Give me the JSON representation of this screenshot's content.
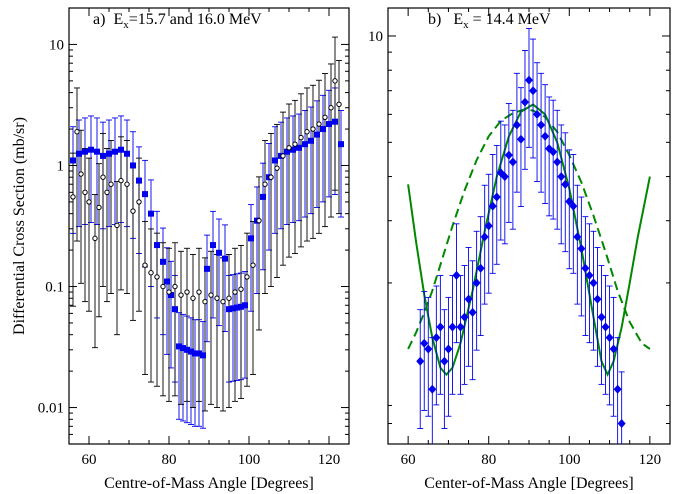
{
  "chart_data": [
    {
      "type": "scatter",
      "panel_label": "a)",
      "title_main": "E",
      "title_sub": "x",
      "title_rest": "=15.7 and 16.0 MeV",
      "xlabel": "Centre-of-Mass Angle [Degrees]",
      "ylabel": "Differential Cross Section (mb/sr)",
      "xlim": [
        55,
        125
      ],
      "ylim": [
        0.005,
        20
      ],
      "yscale": "log",
      "grid": false,
      "x_ticks": [
        60,
        80,
        100,
        120
      ],
      "y_ticks": [
        0.01,
        0.1,
        1,
        10
      ],
      "y_tick_labels": [
        "0.01",
        "0.1",
        "1",
        "10"
      ],
      "series": [
        {
          "color": "#0000ee",
          "marker": "square",
          "points": [
            [
              56,
              1.1
            ],
            [
              57.5,
              1.25
            ],
            [
              59,
              1.3
            ],
            [
              60.5,
              1.35
            ],
            [
              62,
              1.3
            ],
            [
              63.5,
              1.2
            ],
            [
              65,
              1.25
            ],
            [
              66.5,
              1.3
            ],
            [
              68,
              1.35
            ],
            [
              69.5,
              1.25
            ],
            [
              71,
              1.0
            ],
            [
              72.5,
              0.75
            ],
            [
              74,
              0.58
            ],
            [
              75.5,
              0.4
            ],
            [
              77,
              0.22
            ],
            [
              78.5,
              0.16
            ],
            [
              79.5,
              0.11
            ],
            [
              80.5,
              0.085
            ],
            [
              81.5,
              0.065
            ],
            [
              82.5,
              0.032
            ],
            [
              83.5,
              0.031
            ],
            [
              84.5,
              0.03
            ],
            [
              85.5,
              0.029
            ],
            [
              86.5,
              0.028
            ],
            [
              87.5,
              0.028
            ],
            [
              88.5,
              0.027
            ],
            [
              89.5,
              0.14
            ],
            [
              91,
              0.22
            ],
            [
              92.5,
              0.19
            ],
            [
              94,
              0.17
            ],
            [
              95,
              0.065
            ],
            [
              96,
              0.066
            ],
            [
              97,
              0.067
            ],
            [
              98,
              0.068
            ],
            [
              99,
              0.07
            ],
            [
              100.5,
              0.25
            ],
            [
              102,
              0.35
            ],
            [
              103.5,
              0.55
            ],
            [
              105,
              0.8
            ],
            [
              106.5,
              1.1
            ],
            [
              108,
              1.2
            ],
            [
              109.5,
              1.3
            ],
            [
              111,
              1.35
            ],
            [
              112.5,
              1.4
            ],
            [
              114,
              1.5
            ],
            [
              115.5,
              1.6
            ],
            [
              117,
              1.8
            ],
            [
              118.5,
              2.0
            ],
            [
              120,
              2.2
            ],
            [
              121.5,
              2.3
            ],
            [
              123,
              1.5
            ]
          ]
        },
        {
          "color": "#000000",
          "marker": "open-circle",
          "points": [
            [
              56,
              0.55
            ],
            [
              57,
              1.9
            ],
            [
              58,
              0.85
            ],
            [
              59,
              0.6
            ],
            [
              60,
              0.5
            ],
            [
              61.5,
              0.25
            ],
            [
              62.5,
              0.45
            ],
            [
              63.5,
              0.8
            ],
            [
              64.5,
              0.6
            ],
            [
              65.5,
              0.7
            ],
            [
              67,
              0.32
            ],
            [
              68,
              0.75
            ],
            [
              69.5,
              0.7
            ],
            [
              71,
              0.42
            ],
            [
              72.5,
              0.5
            ],
            [
              74,
              0.15
            ],
            [
              75.5,
              0.13
            ],
            [
              77,
              0.12
            ],
            [
              78.5,
              0.1
            ],
            [
              80,
              0.09
            ],
            [
              81.5,
              0.1
            ],
            [
              83,
              0.085
            ],
            [
              84.5,
              0.09
            ],
            [
              86,
              0.08
            ],
            [
              87.5,
              0.09
            ],
            [
              89,
              0.075
            ],
            [
              90.5,
              0.085
            ],
            [
              92,
              0.08
            ],
            [
              93.5,
              0.075
            ],
            [
              95,
              0.08
            ],
            [
              96.5,
              0.09
            ],
            [
              98,
              0.095
            ],
            [
              99.5,
              0.12
            ],
            [
              101,
              0.15
            ],
            [
              102.5,
              0.35
            ],
            [
              104,
              0.7
            ],
            [
              105.5,
              0.8
            ],
            [
              107,
              0.95
            ],
            [
              108.5,
              1.2
            ],
            [
              110,
              1.4
            ],
            [
              111.5,
              1.5
            ],
            [
              113,
              1.7
            ],
            [
              114.5,
              1.9
            ],
            [
              116,
              2.0
            ],
            [
              117.5,
              2.2
            ],
            [
              119,
              2.5
            ],
            [
              120.5,
              3.0
            ],
            [
              121.5,
              5.0
            ],
            [
              122.5,
              3.2
            ]
          ]
        }
      ]
    },
    {
      "type": "scatter",
      "panel_label": "b)",
      "title_main": "E",
      "title_sub": "x",
      "title_rest": " = 14.4 MeV",
      "xlabel": "Center-of-Mass Angle [Degrees]",
      "xlim": [
        55,
        125
      ],
      "ylim": [
        0.7,
        12
      ],
      "yscale": "log",
      "grid": false,
      "x_ticks": [
        60,
        80,
        100,
        120
      ],
      "y_ticks": [
        10
      ],
      "y_tick_labels": [
        "10"
      ],
      "series": [
        {
          "color": "#0000ee",
          "marker": "diamond",
          "points": [
            [
              63,
              1.2
            ],
            [
              64,
              1.35
            ],
            [
              65,
              1.3
            ],
            [
              66,
              1.0
            ],
            [
              67,
              1.4
            ],
            [
              68,
              1.5
            ],
            [
              69,
              1.2
            ],
            [
              70,
              1.3
            ],
            [
              71,
              1.5
            ],
            [
              72,
              2.1
            ],
            [
              73,
              1.5
            ],
            [
              74,
              1.6
            ],
            [
              75,
              1.8
            ],
            [
              76,
              1.65
            ],
            [
              77,
              2.0
            ],
            [
              78,
              2.2
            ],
            [
              79,
              2.7
            ],
            [
              80,
              2.9
            ],
            [
              81,
              3.3
            ],
            [
              82,
              3.5
            ],
            [
              83,
              4.1
            ],
            [
              84,
              4.0
            ],
            [
              85,
              4.6
            ],
            [
              86,
              4.4
            ],
            [
              87,
              5.6
            ],
            [
              88,
              5.1
            ],
            [
              89,
              6.5
            ],
            [
              90,
              7.5
            ],
            [
              91,
              7.0
            ],
            [
              92,
              6.0
            ],
            [
              93,
              5.6
            ],
            [
              94,
              5.2
            ],
            [
              95,
              4.8
            ],
            [
              96,
              4.7
            ],
            [
              97,
              4.4
            ],
            [
              98,
              4.0
            ],
            [
              99,
              3.8
            ],
            [
              100,
              3.4
            ],
            [
              101,
              3.3
            ],
            [
              102,
              2.7
            ],
            [
              103,
              2.5
            ],
            [
              104,
              2.2
            ],
            [
              105,
              2.1
            ],
            [
              106,
              2.0
            ],
            [
              107,
              1.8
            ],
            [
              108,
              1.6
            ],
            [
              109,
              1.5
            ],
            [
              110,
              1.4
            ],
            [
              111,
              1.3
            ],
            [
              112,
              1.0
            ],
            [
              113,
              0.8
            ]
          ]
        }
      ],
      "curves": [
        {
          "style": "solid",
          "color": "#008800",
          "points": [
            [
              60,
              3.8
            ],
            [
              62,
              2.6
            ],
            [
              64,
              1.85
            ],
            [
              66,
              1.4
            ],
            [
              68,
              1.15
            ],
            [
              69.5,
              1.1
            ],
            [
              71,
              1.15
            ],
            [
              73,
              1.35
            ],
            [
              76,
              1.9
            ],
            [
              79,
              2.8
            ],
            [
              82,
              4.0
            ],
            [
              85,
              5.2
            ],
            [
              88,
              6.1
            ],
            [
              91,
              6.4
            ],
            [
              94,
              6.0
            ],
            [
              97,
              5.0
            ],
            [
              100,
              3.7
            ],
            [
              103,
              2.5
            ],
            [
              106,
              1.6
            ],
            [
              108,
              1.2
            ],
            [
              109.5,
              1.1
            ],
            [
              111,
              1.2
            ],
            [
              113,
              1.5
            ],
            [
              115,
              2.0
            ],
            [
              117,
              2.7
            ],
            [
              119,
              3.5
            ],
            [
              120,
              4.0
            ]
          ]
        },
        {
          "style": "dashed",
          "color": "#008800",
          "points": [
            [
              60,
              1.3
            ],
            [
              62,
              1.45
            ],
            [
              64,
              1.65
            ],
            [
              66,
              1.9
            ],
            [
              68,
              2.25
            ],
            [
              71,
              2.9
            ],
            [
              74,
              3.65
            ],
            [
              77,
              4.45
            ],
            [
              80,
              5.2
            ],
            [
              83,
              5.75
            ],
            [
              86,
              6.05
            ],
            [
              89,
              6.2
            ],
            [
              91,
              6.15
            ],
            [
              94,
              5.9
            ],
            [
              97,
              5.35
            ],
            [
              100,
              4.6
            ],
            [
              103,
              3.85
            ],
            [
              106,
              3.1
            ],
            [
              109,
              2.45
            ],
            [
              112,
              1.9
            ],
            [
              115,
              1.55
            ],
            [
              118,
              1.35
            ],
            [
              120,
              1.3
            ]
          ]
        }
      ]
    }
  ]
}
